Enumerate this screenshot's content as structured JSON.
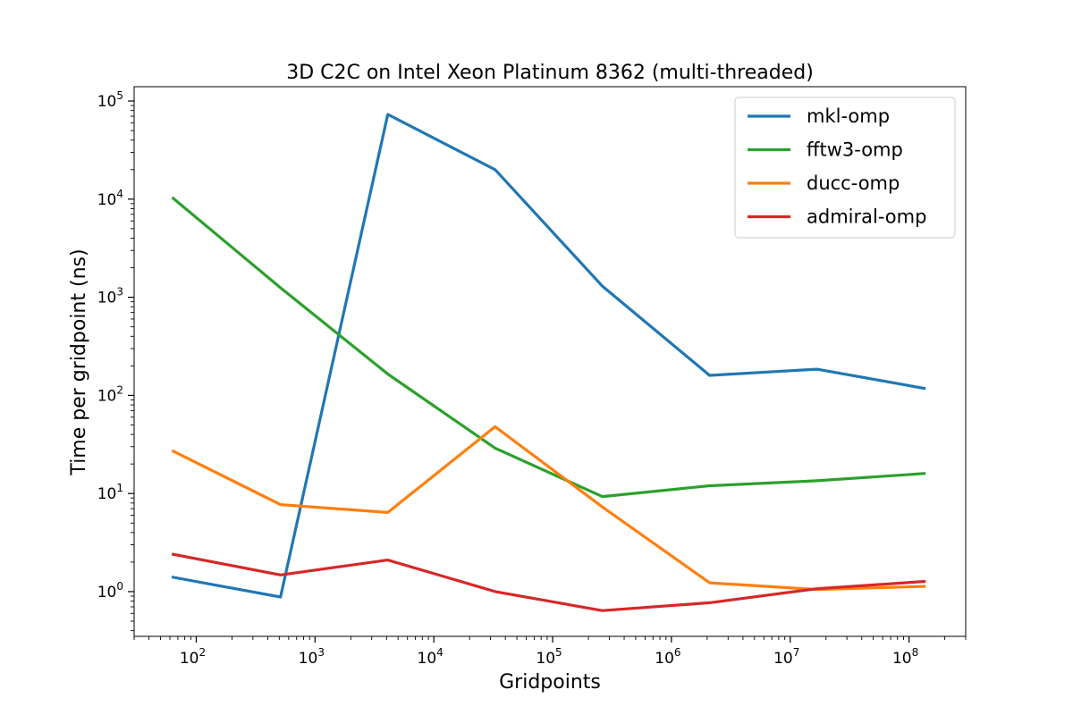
{
  "chart_data": {
    "type": "line",
    "title": "3D C2C on Intel Xeon Platinum 8362 (multi-threaded)",
    "xlabel": "Gridpoints",
    "ylabel": "Time per gridpoint (ns)",
    "xscale": "log",
    "yscale": "log",
    "xlim": [
      30,
      300000000
    ],
    "ylim": [
      0.35,
      140000
    ],
    "grid": false,
    "legend_position": "top-right",
    "x": [
      64,
      512,
      4096,
      32768,
      262144,
      2097152,
      16777216,
      134217728
    ],
    "x_ticks": [
      {
        "value": 100,
        "base": "10",
        "exp": "2"
      },
      {
        "value": 1000,
        "base": "10",
        "exp": "3"
      },
      {
        "value": 10000,
        "base": "10",
        "exp": "4"
      },
      {
        "value": 100000,
        "base": "10",
        "exp": "5"
      },
      {
        "value": 1000000,
        "base": "10",
        "exp": "6"
      },
      {
        "value": 10000000,
        "base": "10",
        "exp": "7"
      },
      {
        "value": 100000000,
        "base": "10",
        "exp": "8"
      }
    ],
    "y_ticks": [
      {
        "value": 1,
        "base": "10",
        "exp": "0"
      },
      {
        "value": 10,
        "base": "10",
        "exp": "1"
      },
      {
        "value": 100,
        "base": "10",
        "exp": "2"
      },
      {
        "value": 1000,
        "base": "10",
        "exp": "3"
      },
      {
        "value": 10000,
        "base": "10",
        "exp": "4"
      },
      {
        "value": 100000,
        "base": "10",
        "exp": "5"
      }
    ],
    "series": [
      {
        "name": "mkl-omp",
        "color": "#1f77b4",
        "values": [
          1.4,
          0.88,
          73000,
          20000,
          1300,
          160,
          185,
          118
        ]
      },
      {
        "name": "fftw3-omp",
        "color": "#2ca02c",
        "values": [
          10200,
          1250,
          165,
          29,
          9.3,
          12,
          13.5,
          16
        ]
      },
      {
        "name": "ducc-omp",
        "color": "#ff7f0e",
        "values": [
          27,
          7.7,
          6.4,
          48,
          7.3,
          1.23,
          1.05,
          1.13
        ]
      },
      {
        "name": "admiral-omp",
        "color": "#d62728",
        "values": [
          2.4,
          1.48,
          2.1,
          1.0,
          0.64,
          0.77,
          1.07,
          1.27
        ]
      }
    ]
  }
}
